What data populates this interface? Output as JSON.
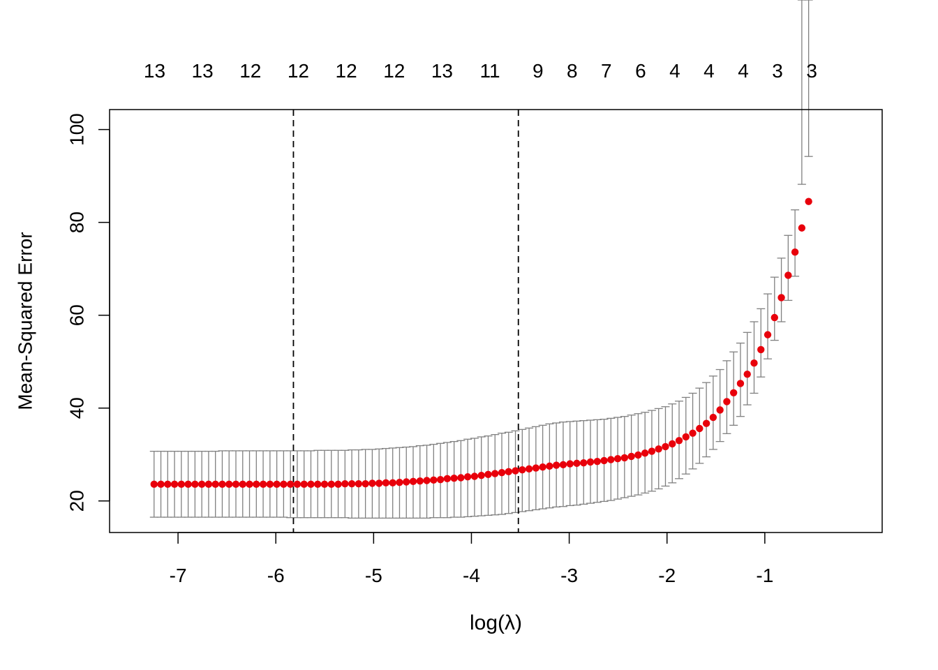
{
  "chart_data": {
    "type": "scatter",
    "xlabel": "log(λ)",
    "ylabel": "Mean-Squared Error",
    "xlim": [
      -7.7,
      0.2
    ],
    "ylim": [
      13.2,
      104.3
    ],
    "x_ticks": [
      -7,
      -6,
      -5,
      -4,
      -3,
      -2,
      -1
    ],
    "x_tick_labels": [
      "-7",
      "-6",
      "-5",
      "-4",
      "-3",
      "-2",
      "-1"
    ],
    "y_ticks": [
      20,
      40,
      60,
      80,
      100
    ],
    "y_tick_labels": [
      "20",
      "40",
      "60",
      "80",
      "100"
    ],
    "top_axis": {
      "ticks": [
        -7.24,
        -6.75,
        -6.26,
        -5.77,
        -5.28,
        -4.79,
        -4.3,
        -3.81,
        -3.32,
        -2.97,
        -2.62,
        -2.27,
        -1.92,
        -1.57,
        -1.22,
        -0.87,
        -0.52
      ],
      "labels": [
        "13",
        "13",
        "12",
        "12",
        "12",
        "12",
        "13",
        "11",
        "9",
        "8",
        "7",
        "6",
        "4",
        "4",
        "4",
        "3",
        "3"
      ]
    },
    "vlines": [
      -5.82,
      -3.52
    ],
    "grid": false,
    "point_color": "#e8000b",
    "errorbar_color": "#808080",
    "series": [
      {
        "x_start": -7.245,
        "x_step": 0.06972,
        "cvm": [
          23.6,
          23.6,
          23.6,
          23.6,
          23.6,
          23.6,
          23.6,
          23.6,
          23.6,
          23.6,
          23.6,
          23.6,
          23.6,
          23.6,
          23.6,
          23.6,
          23.6,
          23.6,
          23.6,
          23.6,
          23.6,
          23.6,
          23.6,
          23.6,
          23.6,
          23.6,
          23.6,
          23.6,
          23.7,
          23.7,
          23.7,
          23.7,
          23.8,
          23.8,
          23.9,
          23.9,
          24.0,
          24.1,
          24.2,
          24.3,
          24.4,
          24.5,
          24.6,
          24.8,
          24.9,
          25.0,
          25.2,
          25.3,
          25.5,
          25.7,
          25.9,
          26.1,
          26.3,
          26.5,
          26.7,
          26.9,
          27.1,
          27.3,
          27.5,
          27.7,
          27.8,
          28.0,
          28.1,
          28.2,
          28.4,
          28.5,
          28.7,
          28.9,
          29.1,
          29.3,
          29.6,
          29.9,
          30.3,
          30.7,
          31.2,
          31.7,
          32.3,
          33.0,
          33.8,
          34.6,
          35.6,
          36.7,
          38.0,
          39.6,
          41.4,
          43.3,
          45.3,
          47.3,
          49.7,
          52.6,
          55.8,
          59.5,
          63.8,
          68.6,
          73.6,
          78.8,
          84.5
        ],
        "cvup": [
          30.7,
          30.7,
          30.7,
          30.7,
          30.7,
          30.7,
          30.7,
          30.7,
          30.7,
          30.7,
          30.8,
          30.8,
          30.8,
          30.8,
          30.8,
          30.8,
          30.8,
          30.8,
          30.8,
          30.8,
          30.8,
          30.8,
          30.8,
          30.8,
          30.9,
          30.9,
          30.9,
          30.9,
          30.9,
          31.0,
          31.0,
          31.1,
          31.1,
          31.2,
          31.3,
          31.4,
          31.5,
          31.6,
          31.7,
          31.9,
          32.0,
          32.2,
          32.4,
          32.6,
          32.8,
          33.0,
          33.3,
          33.5,
          33.8,
          34.0,
          34.3,
          34.6,
          34.8,
          35.1,
          35.4,
          35.7,
          36.0,
          36.3,
          36.6,
          36.8,
          37.0,
          37.1,
          37.2,
          37.3,
          37.4,
          37.5,
          37.6,
          37.8,
          38.0,
          38.2,
          38.5,
          38.8,
          39.1,
          39.5,
          39.9,
          40.3,
          40.9,
          41.5,
          42.3,
          43.2,
          44.3,
          45.5,
          46.9,
          48.3,
          50.2,
          52.1,
          54.0,
          56.3,
          58.6,
          61.4,
          64.6,
          68.2,
          72.3,
          77.2,
          82.7,
          88.2,
          94.2,
          100.6
        ],
        "cvlo": [
          16.5,
          16.5,
          16.5,
          16.5,
          16.5,
          16.5,
          16.5,
          16.5,
          16.5,
          16.5,
          16.5,
          16.5,
          16.5,
          16.5,
          16.5,
          16.5,
          16.5,
          16.5,
          16.5,
          16.5,
          16.4,
          16.4,
          16.4,
          16.4,
          16.4,
          16.4,
          16.4,
          16.4,
          16.4,
          16.3,
          16.3,
          16.3,
          16.3,
          16.3,
          16.3,
          16.3,
          16.3,
          16.3,
          16.3,
          16.3,
          16.3,
          16.4,
          16.4,
          16.4,
          16.5,
          16.5,
          16.6,
          16.7,
          16.8,
          16.9,
          17.0,
          17.1,
          17.3,
          17.5,
          17.7,
          17.9,
          18.1,
          18.3,
          18.5,
          18.7,
          18.8,
          19.0,
          19.1,
          19.3,
          19.5,
          19.7,
          19.9,
          20.1,
          20.4,
          20.7,
          21.0,
          21.3,
          21.7,
          22.1,
          22.6,
          23.2,
          23.9,
          24.8,
          25.8,
          26.9,
          28.1,
          29.5,
          31.1,
          32.8,
          34.5,
          36.3,
          38.2,
          40.7,
          43.2,
          46.7,
          50.6,
          54.6,
          58.6,
          63.2,
          68.4
        ]
      }
    ]
  }
}
